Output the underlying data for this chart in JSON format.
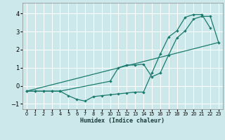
{
  "xlabel": "Humidex (Indice chaleur)",
  "bg_color": "#cce8ea",
  "grid_color": "#ffffff",
  "line_color": "#1a7a6e",
  "xlim": [
    -0.5,
    23.5
  ],
  "ylim": [
    -1.3,
    4.6
  ],
  "xticks": [
    0,
    1,
    2,
    3,
    4,
    5,
    6,
    7,
    8,
    9,
    10,
    11,
    12,
    13,
    14,
    15,
    16,
    17,
    18,
    19,
    20,
    21,
    22,
    23
  ],
  "yticks": [
    -1,
    0,
    1,
    2,
    3,
    4
  ],
  "line1_x": [
    0,
    1,
    2,
    3,
    4,
    5,
    6,
    7,
    8,
    9,
    10,
    11,
    12,
    13,
    14,
    15,
    16,
    17,
    18,
    19,
    20,
    21,
    22
  ],
  "line1_y": [
    -0.3,
    -0.3,
    -0.3,
    -0.3,
    -0.3,
    -0.55,
    -0.75,
    -0.85,
    -0.6,
    -0.55,
    -0.5,
    -0.45,
    -0.4,
    -0.35,
    -0.35,
    0.7,
    1.75,
    2.7,
    3.05,
    3.8,
    3.95,
    3.95,
    3.2
  ],
  "line2_x": [
    0,
    1,
    2,
    3,
    4,
    10,
    11,
    12,
    13,
    14,
    15,
    16,
    17,
    18,
    19,
    20,
    21,
    22,
    23
  ],
  "line2_y": [
    -0.3,
    -0.3,
    -0.3,
    -0.3,
    -0.3,
    0.25,
    1.0,
    1.15,
    1.15,
    1.2,
    0.5,
    0.7,
    1.7,
    2.65,
    3.05,
    3.7,
    3.85,
    3.85,
    2.4
  ],
  "line3_x": [
    0,
    23
  ],
  "line3_y": [
    -0.3,
    2.4
  ]
}
